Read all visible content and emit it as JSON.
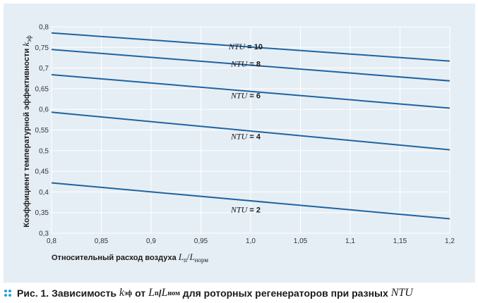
{
  "chart_data": {
    "type": "line",
    "x_ticks": [
      "0,8",
      "0,85",
      "0,9",
      "0,95",
      "1,0",
      "1,05",
      "1,1",
      "1,15",
      "1,2"
    ],
    "y_ticks": [
      "0,3",
      "0,35",
      "0,4",
      "0,45",
      "0,5",
      "0,55",
      "0,6",
      "0,65",
      "0,7",
      "0,75",
      "0,8"
    ],
    "xlim": [
      0.8,
      1.2
    ],
    "ylim": [
      0.3,
      0.8
    ],
    "grid": true,
    "xlabel": {
      "text": "Относительный расход воздуха ",
      "var": "L",
      "sub1": "п",
      "slash": "/",
      "var2": "L",
      "sub2": "норм"
    },
    "ylabel": {
      "text": "Коэффициент температурной эффективности ",
      "var": "k",
      "sub": "эф"
    },
    "series_label_prefix": "NTU",
    "series_label_eq": " = ",
    "series": [
      {
        "name": "10",
        "x": [
          0.8,
          1.2
        ],
        "y": [
          0.785,
          0.717
        ]
      },
      {
        "name": "8",
        "x": [
          0.8,
          1.2
        ],
        "y": [
          0.745,
          0.669
        ]
      },
      {
        "name": "6",
        "x": [
          0.8,
          1.2
        ],
        "y": [
          0.684,
          0.603
        ]
      },
      {
        "name": "4",
        "x": [
          0.8,
          1.2
        ],
        "y": [
          0.593,
          0.502
        ]
      },
      {
        "name": "2",
        "x": [
          0.8,
          1.2
        ],
        "y": [
          0.422,
          0.335
        ]
      }
    ],
    "label_x": [
      0.995,
      0.995,
      0.995,
      0.995,
      0.995
    ],
    "label_y": [
      0.752,
      0.71,
      0.634,
      0.535,
      0.357
    ],
    "colors": {
      "line": "#1f63a0",
      "grid": "#ffffff",
      "background": "#e6eef5"
    }
  },
  "caption": {
    "prefix": "Рис. 1.",
    "text1": " Зависимость ",
    "var1": "k",
    "sub1": "эф",
    "text2": " от ",
    "var2": "L",
    "sub2": "п",
    "slash": "/",
    "var3": "L",
    "sub3": "ном",
    "text3": " для роторных регенераторов при разных ",
    "var4": "NTU",
    "dots_color": "#2a9fd6"
  }
}
